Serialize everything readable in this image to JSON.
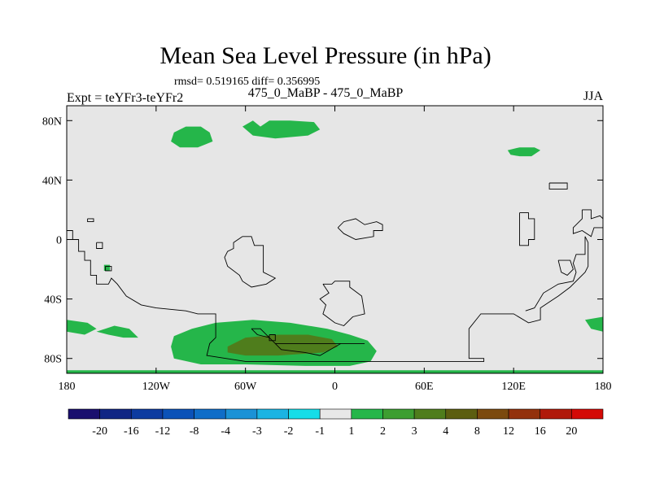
{
  "chart_data": {
    "type": "heatmap",
    "title": "Mean Sea Level Pressure (in hPa)",
    "stats_text": "rmsd= 0.519165 diff= 0.356995",
    "left_label": "Expt = teYFr3-teYFr2",
    "center_label": "475_0_MaBP - 475_0_MaBP",
    "right_label": "JJA",
    "x_ticks": [
      {
        "value": -180,
        "label": "180"
      },
      {
        "value": -120,
        "label": "120W"
      },
      {
        "value": -60,
        "label": "60W"
      },
      {
        "value": 0,
        "label": "0"
      },
      {
        "value": 60,
        "label": "60E"
      },
      {
        "value": 120,
        "label": "120E"
      },
      {
        "value": 180,
        "label": "180"
      }
    ],
    "y_ticks": [
      {
        "value": 80,
        "label": "80N"
      },
      {
        "value": 40,
        "label": "40N"
      },
      {
        "value": 0,
        "label": "0"
      },
      {
        "value": -40,
        "label": "40S"
      },
      {
        "value": -80,
        "label": "80S"
      }
    ],
    "xlim": [
      -180,
      180
    ],
    "ylim": [
      -90,
      90
    ],
    "background_color": "#e6e6e6",
    "colorbar": {
      "colors": [
        "#1a0f6e",
        "#102584",
        "#0d3ba0",
        "#0b52b8",
        "#0f6dc8",
        "#1b92d6",
        "#1bb4e3",
        "#16dde8",
        "#e8e8e8",
        "#25b64a",
        "#3d9e31",
        "#4f7d1c",
        "#5c5e10",
        "#7b4a0e",
        "#93310c",
        "#b0190a",
        "#d40a06"
      ],
      "labels": [
        "-20",
        "-16",
        "-12",
        "-8",
        "-4",
        "-3",
        "-2",
        "-1",
        "1",
        "2",
        "3",
        "4",
        "8",
        "12",
        "16",
        "20"
      ]
    },
    "regions": [
      {
        "name": "north-atlantic-low",
        "level": "1 to 2",
        "color": "#25b64a",
        "points": [
          [
            -108,
            72
          ],
          [
            -100,
            76
          ],
          [
            -90,
            76
          ],
          [
            -84,
            72
          ],
          [
            -82,
            66
          ],
          [
            -92,
            62
          ],
          [
            -104,
            62
          ],
          [
            -110,
            66
          ]
        ]
      },
      {
        "name": "arctic-band",
        "level": "1 to 2",
        "color": "#25b64a",
        "points": [
          [
            -62,
            76
          ],
          [
            -55,
            80
          ],
          [
            -50,
            76
          ],
          [
            -44,
            80
          ],
          [
            -30,
            80
          ],
          [
            -14,
            79
          ],
          [
            -10,
            74
          ],
          [
            -18,
            70
          ],
          [
            -40,
            68
          ],
          [
            -55,
            70
          ]
        ]
      },
      {
        "name": "north-pacific-patch",
        "level": "1 to 2",
        "color": "#25b64a",
        "points": [
          [
            116,
            60
          ],
          [
            124,
            62
          ],
          [
            134,
            62
          ],
          [
            138,
            60
          ],
          [
            132,
            56
          ],
          [
            124,
            56
          ],
          [
            118,
            57
          ]
        ]
      },
      {
        "name": "southern-ocean-band",
        "level": "1 to 2",
        "color": "#25b64a",
        "points": [
          [
            -108,
            -65
          ],
          [
            -96,
            -60
          ],
          [
            -80,
            -56
          ],
          [
            -55,
            -54
          ],
          [
            -30,
            -56
          ],
          [
            -5,
            -60
          ],
          [
            10,
            -64
          ],
          [
            22,
            -68
          ],
          [
            28,
            -75
          ],
          [
            24,
            -82
          ],
          [
            10,
            -85
          ],
          [
            -20,
            -85
          ],
          [
            -60,
            -84
          ],
          [
            -90,
            -84
          ],
          [
            -108,
            -80
          ],
          [
            -110,
            -72
          ]
        ]
      },
      {
        "name": "southern-ocean-core",
        "level": "3 to 4",
        "color": "#4f7d1c",
        "points": [
          [
            -72,
            -72
          ],
          [
            -60,
            -66
          ],
          [
            -38,
            -64
          ],
          [
            -18,
            -64
          ],
          [
            -2,
            -67
          ],
          [
            2,
            -72
          ],
          [
            -8,
            -76
          ],
          [
            -38,
            -78
          ],
          [
            -60,
            -78
          ],
          [
            -72,
            -76
          ]
        ]
      },
      {
        "name": "south-pacific-west",
        "level": "1 to 2",
        "color": "#25b64a",
        "points": [
          [
            -180,
            -54
          ],
          [
            -166,
            -56
          ],
          [
            -160,
            -60
          ],
          [
            -168,
            -64
          ],
          [
            -180,
            -62
          ]
        ]
      },
      {
        "name": "south-pacific-wave",
        "level": "1 to 2",
        "color": "#25b64a",
        "points": [
          [
            -160,
            -62
          ],
          [
            -148,
            -58
          ],
          [
            -138,
            -60
          ],
          [
            -132,
            -66
          ],
          [
            -142,
            -66
          ],
          [
            -152,
            -64
          ]
        ]
      },
      {
        "name": "east-edge-patch",
        "level": "1 to 2",
        "color": "#25b64a",
        "points": [
          [
            168,
            -54
          ],
          [
            180,
            -52
          ],
          [
            180,
            -62
          ],
          [
            172,
            -60
          ]
        ]
      },
      {
        "name": "equatorial-speck",
        "level": "1 to 2",
        "color": "#25b64a",
        "points": [
          [
            -155,
            -17
          ],
          [
            -151,
            -17
          ],
          [
            -151,
            -21
          ],
          [
            -155,
            -21
          ]
        ]
      },
      {
        "name": "south-pole-strip",
        "level": "1 to 2",
        "color": "#25b64a",
        "points": [
          [
            -180,
            -88
          ],
          [
            180,
            -88
          ],
          [
            180,
            -90
          ],
          [
            -180,
            -90
          ]
        ]
      }
    ],
    "coastlines": [
      [
        [
          -180,
          6
        ],
        [
          -176,
          6
        ],
        [
          -176,
          0
        ],
        [
          -172,
          0
        ],
        [
          -172,
          -8
        ],
        [
          -168,
          -8
        ],
        [
          -168,
          -14
        ],
        [
          -164,
          -14
        ],
        [
          -164,
          -24
        ],
        [
          -160,
          -24
        ],
        [
          -160,
          -30
        ],
        [
          -152,
          -30
        ],
        [
          -150,
          -26
        ],
        [
          -146,
          -30
        ],
        [
          -140,
          -38
        ],
        [
          -130,
          -44
        ],
        [
          -120,
          -46
        ],
        [
          -100,
          -48
        ],
        [
          -92,
          -50
        ],
        [
          -80,
          -50
        ],
        [
          -80,
          -66
        ],
        [
          -84,
          -70
        ],
        [
          -86,
          -78
        ],
        [
          -60,
          -82
        ],
        [
          -20,
          -82
        ],
        [
          20,
          -82
        ],
        [
          60,
          -82
        ],
        [
          100,
          -82
        ],
        [
          100,
          -80
        ],
        [
          90,
          -80
        ],
        [
          90,
          -60
        ],
        [
          98,
          -50
        ],
        [
          120,
          -50
        ],
        [
          130,
          -56
        ],
        [
          138,
          -54
        ],
        [
          138,
          -46
        ],
        [
          144,
          -42
        ],
        [
          150,
          -38
        ],
        [
          158,
          -32
        ],
        [
          168,
          -22
        ],
        [
          170,
          -18
        ],
        [
          170,
          -2
        ],
        [
          168,
          2
        ],
        [
          168,
          -10
        ],
        [
          162,
          -10
        ],
        [
          160,
          -16
        ],
        [
          162,
          -22
        ],
        [
          160,
          -28
        ],
        [
          150,
          -30
        ],
        [
          140,
          -36
        ],
        [
          134,
          -46
        ],
        [
          128,
          -48
        ]
      ],
      [
        [
          -166,
          14
        ],
        [
          -162,
          14
        ],
        [
          -162,
          12
        ],
        [
          -166,
          12
        ],
        [
          -166,
          14
        ]
      ],
      [
        [
          -160,
          -2
        ],
        [
          -156,
          -2
        ],
        [
          -156,
          -6
        ],
        [
          -160,
          -6
        ],
        [
          -160,
          -2
        ]
      ],
      [
        [
          -154,
          -18
        ],
        [
          -150,
          -18
        ],
        [
          -150,
          -21
        ],
        [
          -154,
          -21
        ],
        [
          -154,
          -18
        ]
      ],
      [
        [
          -62,
          2
        ],
        [
          -56,
          2
        ],
        [
          -54,
          -4
        ],
        [
          -48,
          -4
        ],
        [
          -48,
          -22
        ],
        [
          -44,
          -24
        ],
        [
          -40,
          -26
        ],
        [
          -46,
          -30
        ],
        [
          -56,
          -32
        ],
        [
          -62,
          -28
        ],
        [
          -64,
          -24
        ],
        [
          -72,
          -18
        ],
        [
          -74,
          -12
        ],
        [
          -72,
          -8
        ],
        [
          -68,
          -6
        ],
        [
          -68,
          -2
        ],
        [
          -62,
          2
        ]
      ],
      [
        [
          -56,
          -60
        ],
        [
          -52,
          -64
        ],
        [
          -44,
          -66
        ],
        [
          -40,
          -70
        ],
        [
          -36,
          -74
        ],
        [
          -20,
          -76
        ],
        [
          -10,
          -78
        ],
        [
          4,
          -70
        ],
        [
          20,
          -70
        ],
        [
          -40,
          -70
        ],
        [
          -50,
          -60
        ],
        [
          -56,
          -60
        ]
      ],
      [
        [
          -44,
          -64
        ],
        [
          -40,
          -64
        ],
        [
          -40,
          -68
        ],
        [
          -44,
          -68
        ],
        [
          -44,
          -64
        ]
      ],
      [
        [
          -8,
          -30
        ],
        [
          -2,
          -30
        ],
        [
          0,
          -28
        ],
        [
          10,
          -28
        ],
        [
          10,
          -32
        ],
        [
          18,
          -38
        ],
        [
          20,
          -50
        ],
        [
          12,
          -52
        ],
        [
          6,
          -58
        ],
        [
          0,
          -56
        ],
        [
          -8,
          -50
        ],
        [
          -6,
          -44
        ],
        [
          -10,
          -40
        ],
        [
          -4,
          -36
        ],
        [
          -8,
          -30
        ]
      ],
      [
        [
          2,
          8
        ],
        [
          6,
          12
        ],
        [
          14,
          14
        ],
        [
          20,
          10
        ],
        [
          28,
          12
        ],
        [
          32,
          10
        ],
        [
          32,
          6
        ],
        [
          26,
          6
        ],
        [
          26,
          2
        ],
        [
          14,
          0
        ],
        [
          6,
          4
        ],
        [
          2,
          8
        ]
      ],
      [
        [
          144,
          38
        ],
        [
          156,
          38
        ],
        [
          156,
          34
        ],
        [
          144,
          34
        ],
        [
          144,
          38
        ]
      ],
      [
        [
          166,
          20
        ],
        [
          172,
          20
        ],
        [
          172,
          14
        ],
        [
          178,
          16
        ],
        [
          180,
          14
        ],
        [
          180,
          8
        ],
        [
          174,
          8
        ],
        [
          172,
          2
        ],
        [
          166,
          6
        ],
        [
          160,
          4
        ],
        [
          160,
          8
        ],
        [
          166,
          14
        ],
        [
          166,
          20
        ]
      ],
      [
        [
          124,
          18
        ],
        [
          130,
          18
        ],
        [
          130,
          14
        ],
        [
          134,
          14
        ],
        [
          134,
          0
        ],
        [
          130,
          0
        ],
        [
          130,
          -4
        ],
        [
          124,
          -4
        ],
        [
          124,
          18
        ]
      ],
      [
        [
          150,
          -14
        ],
        [
          158,
          -14
        ],
        [
          160,
          -20
        ],
        [
          156,
          -24
        ],
        [
          152,
          -22
        ],
        [
          150,
          -14
        ]
      ]
    ]
  }
}
